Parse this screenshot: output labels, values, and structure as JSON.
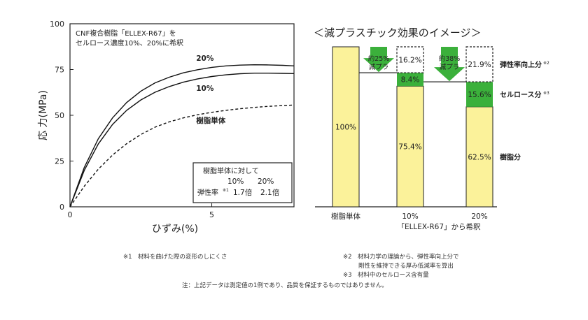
{
  "chart_data": [
    {
      "type": "line",
      "ylabel": "応 力(MPa)",
      "xlabel": "ひずみ(%)",
      "xlim": [
        0,
        7.9
      ],
      "ylim": [
        0,
        100
      ],
      "xticks": [
        "0",
        "5"
      ],
      "yticks": [
        "0",
        "25",
        "50",
        "75",
        "100"
      ],
      "annotation": [
        "CNF複合樹脂「ELLEX-R67」を",
        "セルロース濃度10%、20%に希釈"
      ],
      "series": [
        {
          "name": "20%",
          "style": "solid",
          "x": [
            0,
            0.5,
            1,
            1.5,
            2,
            2.5,
            3,
            3.5,
            4,
            4.5,
            5,
            5.5,
            6,
            6.5,
            7,
            7.5,
            7.9
          ],
          "y": [
            0,
            21.4,
            37.2,
            48.6,
            57,
            63.2,
            67.7,
            70.8,
            73.2,
            74.9,
            76.2,
            77,
            77.4,
            77.6,
            77.5,
            77.3,
            77
          ]
        },
        {
          "name": "10%",
          "style": "solid",
          "x": [
            0,
            0.5,
            1,
            1.5,
            2,
            2.5,
            3,
            3.5,
            4,
            4.5,
            5,
            5.5,
            6,
            6.5,
            7,
            7.5,
            7.9
          ],
          "y": [
            0,
            19.8,
            34.4,
            45,
            52.7,
            58.4,
            62.6,
            65.7,
            68.1,
            69.9,
            71.2,
            72.1,
            72.7,
            73,
            73,
            72.9,
            72.8
          ]
        },
        {
          "name": "樹脂単体",
          "style": "dashed",
          "x": [
            0,
            0.5,
            1,
            1.5,
            2,
            2.5,
            3,
            3.5,
            4,
            4.5,
            5,
            5.5,
            6,
            6.5,
            7,
            7.5,
            7.9
          ],
          "y": [
            0,
            11.2,
            20.6,
            28.3,
            34.5,
            39.5,
            43.5,
            46.4,
            48.6,
            50.3,
            51.6,
            52.7,
            53.6,
            54.3,
            54.9,
            55.3,
            55.6
          ]
        }
      ],
      "inset_table": {
        "header": "樹脂単体に対して",
        "columns": [
          "10%",
          "20%"
        ],
        "row_label": "弾性率",
        "row_mark": "※1",
        "values": [
          "1.7倍",
          "2.1倍"
        ]
      }
    },
    {
      "type": "bar",
      "title": "＜減プラスチック効果のイメージ＞",
      "categories": [
        "樹脂単体",
        "10%",
        "20%"
      ],
      "category_note": "「ELLEX-R67」から希釈",
      "series": [
        {
          "name": "樹脂分",
          "color": "#fbf29a",
          "values": [
            100,
            75.4,
            62.5
          ],
          "labels": [
            "100%",
            "75.4%",
            "62.5%"
          ]
        },
        {
          "name": "セルロース分",
          "mark": "※3",
          "color": "#3bb03b",
          "values": [
            0,
            8.4,
            15.6
          ],
          "labels": [
            "",
            "8.4%",
            "15.6%"
          ]
        },
        {
          "name": "弾性率向上分",
          "mark": "※2",
          "style": "dashed",
          "values": [
            0,
            16.2,
            21.9
          ],
          "labels": [
            "",
            "16.2%",
            "21.9%"
          ]
        }
      ],
      "arrows": [
        {
          "lines": [
            "約25%",
            "減プラ"
          ]
        },
        {
          "lines": [
            "約38%",
            "減プラ"
          ]
        }
      ]
    }
  ],
  "footnotes": {
    "note1": "※1　材料を曲げた際の変形のしにくさ",
    "note2_a": "※2　材料力学の理論から、弾性率向上分で",
    "note2_b": "剛性を維持できる厚み低減率を算出",
    "note3": "※3　材料中のセルロース含有量",
    "disclaimer": "注：上記データは測定値の1例であり、品質を保証するものではありません。"
  }
}
